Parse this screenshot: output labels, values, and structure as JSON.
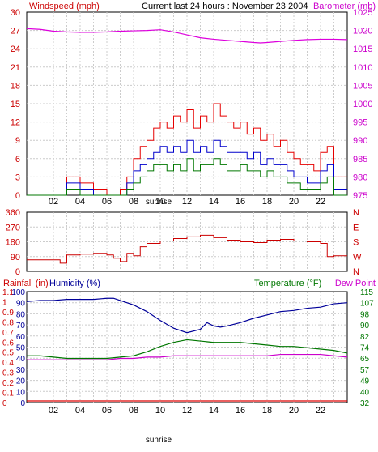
{
  "colors": {
    "wind_gust": "#e60000",
    "wind_avg": "#0000cc",
    "wind_low": "#007700",
    "barometer": "#dd00dd",
    "direction": "#cc0000",
    "humidity": "#000099",
    "temperature": "#007700",
    "dewpoint": "#cc00cc",
    "rainfall": "#dd0000",
    "grid": "#cccccc",
    "axis_left": "#cc0000",
    "axis_right": "#cc00cc"
  },
  "chart_data": [
    {
      "type": "line",
      "title": "Current last 24 hours : November 23 2004",
      "ylabel": "Windspeed (mph)",
      "y2label": "Barometer (mb)",
      "x_ticks": [
        "02",
        "04",
        "06",
        "08",
        "10",
        "12",
        "14",
        "16",
        "18",
        "20",
        "22"
      ],
      "x_annotation": "sunrise",
      "x_range": [
        0,
        24
      ],
      "ylim": [
        0,
        30
      ],
      "y_ticks": [
        "0",
        "3",
        "6",
        "9",
        "12",
        "15",
        "18",
        "21",
        "24",
        "27",
        "30"
      ],
      "y2lim": [
        975,
        1025
      ],
      "y2_ticks": [
        "975",
        "980",
        "985",
        "990",
        "995",
        "1000",
        "1005",
        "1010",
        "1015",
        "1020",
        "1025"
      ],
      "grid": true,
      "series": [
        {
          "key": "gust",
          "x": [
            0,
            2.5,
            3,
            4,
            5,
            6,
            7,
            7.5,
            8,
            8.5,
            9,
            9.5,
            10,
            10.5,
            11,
            11.5,
            12,
            12.5,
            13,
            13.5,
            14,
            14.5,
            15,
            15.5,
            16,
            16.5,
            17,
            17.5,
            18,
            18.5,
            19,
            19.5,
            20,
            20.5,
            21,
            21.5,
            22,
            22.5,
            23,
            23.5
          ],
          "values": [
            0,
            0,
            3,
            2,
            1,
            0,
            1,
            3,
            6,
            8,
            9,
            11,
            12,
            11,
            13,
            12,
            14,
            11,
            13,
            12,
            15,
            13,
            12,
            11,
            12,
            10,
            11,
            9,
            10,
            8,
            9,
            7,
            6,
            5,
            5,
            4,
            7,
            8,
            3,
            3
          ]
        },
        {
          "key": "average",
          "x": [
            0,
            2.5,
            3,
            4,
            5,
            6,
            7,
            7.5,
            8,
            8.5,
            9,
            9.5,
            10,
            10.5,
            11,
            11.5,
            12,
            12.5,
            13,
            13.5,
            14,
            14.5,
            15,
            15.5,
            16,
            16.5,
            17,
            17.5,
            18,
            18.5,
            19,
            19.5,
            20,
            20.5,
            21,
            21.5,
            22,
            22.5,
            23,
            23.5
          ],
          "values": [
            0,
            0,
            2,
            1,
            0,
            0,
            0,
            2,
            4,
            5,
            6,
            7,
            8,
            7,
            8,
            7,
            9,
            7,
            8,
            7,
            9,
            8,
            7,
            7,
            7,
            6,
            7,
            5,
            6,
            5,
            5,
            4,
            3,
            3,
            2,
            2,
            4,
            5,
            1,
            1
          ]
        },
        {
          "key": "low",
          "x": [
            0,
            2.5,
            3,
            4,
            5,
            6,
            7,
            7.5,
            8,
            8.5,
            9,
            9.5,
            10,
            10.5,
            11,
            11.5,
            12,
            12.5,
            13,
            13.5,
            14,
            14.5,
            15,
            15.5,
            16,
            16.5,
            17,
            17.5,
            18,
            18.5,
            19,
            19.5,
            20,
            20.5,
            21,
            21.5,
            22,
            22.5,
            23,
            23.5
          ],
          "values": [
            0,
            0,
            1,
            0,
            0,
            0,
            0,
            1,
            2,
            3,
            4,
            5,
            5,
            4,
            5,
            4,
            6,
            4,
            5,
            5,
            6,
            5,
            4,
            4,
            5,
            4,
            4,
            3,
            4,
            3,
            3,
            2,
            2,
            1,
            1,
            1,
            2,
            3,
            0,
            0
          ]
        },
        {
          "key": "barometer",
          "axis": "right",
          "x": [
            0,
            1,
            2,
            3,
            4,
            5,
            6,
            7,
            8,
            9,
            10,
            11,
            12,
            13,
            14,
            15,
            16,
            17,
            17.5,
            18,
            19,
            20,
            21,
            22,
            23,
            24
          ],
          "values": [
            1020.5,
            1020.3,
            1019.8,
            1019.6,
            1019.5,
            1019.5,
            1019.6,
            1019.8,
            1019.9,
            1020.0,
            1020.2,
            1019.6,
            1018.8,
            1018.0,
            1017.6,
            1017.3,
            1017.0,
            1016.7,
            1016.6,
            1016.7,
            1017.0,
            1017.3,
            1017.5,
            1017.6,
            1017.6,
            1017.5
          ]
        }
      ]
    },
    {
      "type": "line",
      "ylim": [
        0,
        360
      ],
      "y_ticks": [
        "0",
        "90",
        "180",
        "270",
        "360"
      ],
      "y2_ticks": [
        "N",
        "W",
        "S",
        "E",
        "N"
      ],
      "x_range": [
        0,
        24
      ],
      "grid": true,
      "series": [
        {
          "key": "direction",
          "x": [
            0,
            1,
            2,
            2.5,
            3,
            4,
            5,
            6,
            6.5,
            7,
            7.5,
            8,
            8.5,
            9,
            10,
            11,
            12,
            13,
            14,
            15,
            16,
            17,
            18,
            19,
            20,
            21,
            22,
            22.5,
            23,
            24
          ],
          "values": [
            70,
            70,
            70,
            50,
            100,
            105,
            110,
            100,
            80,
            60,
            110,
            95,
            150,
            170,
            185,
            200,
            210,
            220,
            205,
            190,
            180,
            175,
            190,
            195,
            185,
            180,
            170,
            90,
            95,
            95
          ]
        }
      ]
    },
    {
      "type": "line",
      "ylabel": "Rainfall (in)",
      "y1label": "Humidity (%)",
      "y2label": "Temperature (°F)",
      "y3label": "Dew Point",
      "x_ticks": [
        "02",
        "04",
        "06",
        "08",
        "10",
        "12",
        "14",
        "16",
        "18",
        "20",
        "22"
      ],
      "x_annotation": "sunrise",
      "x_range": [
        0,
        24
      ],
      "humidity_ticks": [
        "0",
        "10",
        "20",
        "30",
        "40",
        "50",
        "60",
        "70",
        "80",
        "90",
        "100"
      ],
      "rain_ticks": [
        "0",
        "0.1",
        "0.2",
        "0.3",
        "0.4",
        "0.5",
        "0.6",
        "0.7",
        "0.8",
        "0.9",
        "1",
        "1.1"
      ],
      "temp_ticks": [
        "32",
        "40",
        "49",
        "57",
        "65",
        "74",
        "82",
        "90",
        "98",
        "107",
        "115"
      ],
      "humidity_lim": [
        0,
        100
      ],
      "temp_lim": [
        32,
        115
      ],
      "rain_lim": [
        0,
        1.1
      ],
      "grid": true,
      "series": [
        {
          "key": "humidity",
          "x": [
            0,
            1,
            2,
            3,
            4,
            5,
            6,
            6.5,
            7,
            8,
            9,
            10,
            11,
            12,
            13,
            13.5,
            14,
            14.5,
            15,
            16,
            17,
            18,
            19,
            20,
            21,
            22,
            23,
            24
          ],
          "values": [
            91,
            92,
            92,
            93,
            93,
            93,
            94,
            94,
            92,
            88,
            82,
            74,
            67,
            63,
            66,
            72,
            69,
            68,
            69,
            72,
            76,
            79,
            82,
            83,
            85,
            86,
            89,
            90
          ]
        },
        {
          "key": "temperature",
          "axis": "right",
          "x": [
            0,
            1,
            2,
            3,
            4,
            5,
            6,
            7,
            8,
            9,
            10,
            11,
            12,
            13,
            14,
            15,
            16,
            17,
            18,
            19,
            20,
            21,
            22,
            23,
            24
          ],
          "values": [
            67,
            67,
            66,
            65,
            65,
            65,
            65,
            66,
            67,
            70,
            74,
            77,
            79,
            78,
            77,
            77,
            77,
            76,
            75,
            74,
            74,
            73,
            72,
            71,
            69
          ]
        },
        {
          "key": "dewpoint",
          "axis": "right",
          "x": [
            0,
            1,
            2,
            3,
            4,
            5,
            6,
            7,
            8,
            9,
            10,
            11,
            12,
            13,
            14,
            15,
            16,
            17,
            18,
            19,
            20,
            21,
            22,
            23,
            24
          ],
          "values": [
            64,
            64,
            64,
            64,
            64,
            64,
            64,
            65,
            65,
            66,
            66,
            67,
            67,
            67,
            67,
            67,
            67,
            67,
            67,
            68,
            68,
            68,
            68,
            67,
            66
          ]
        },
        {
          "key": "rainfall",
          "x": [
            0,
            24
          ],
          "values": [
            0,
            0
          ]
        }
      ]
    }
  ]
}
